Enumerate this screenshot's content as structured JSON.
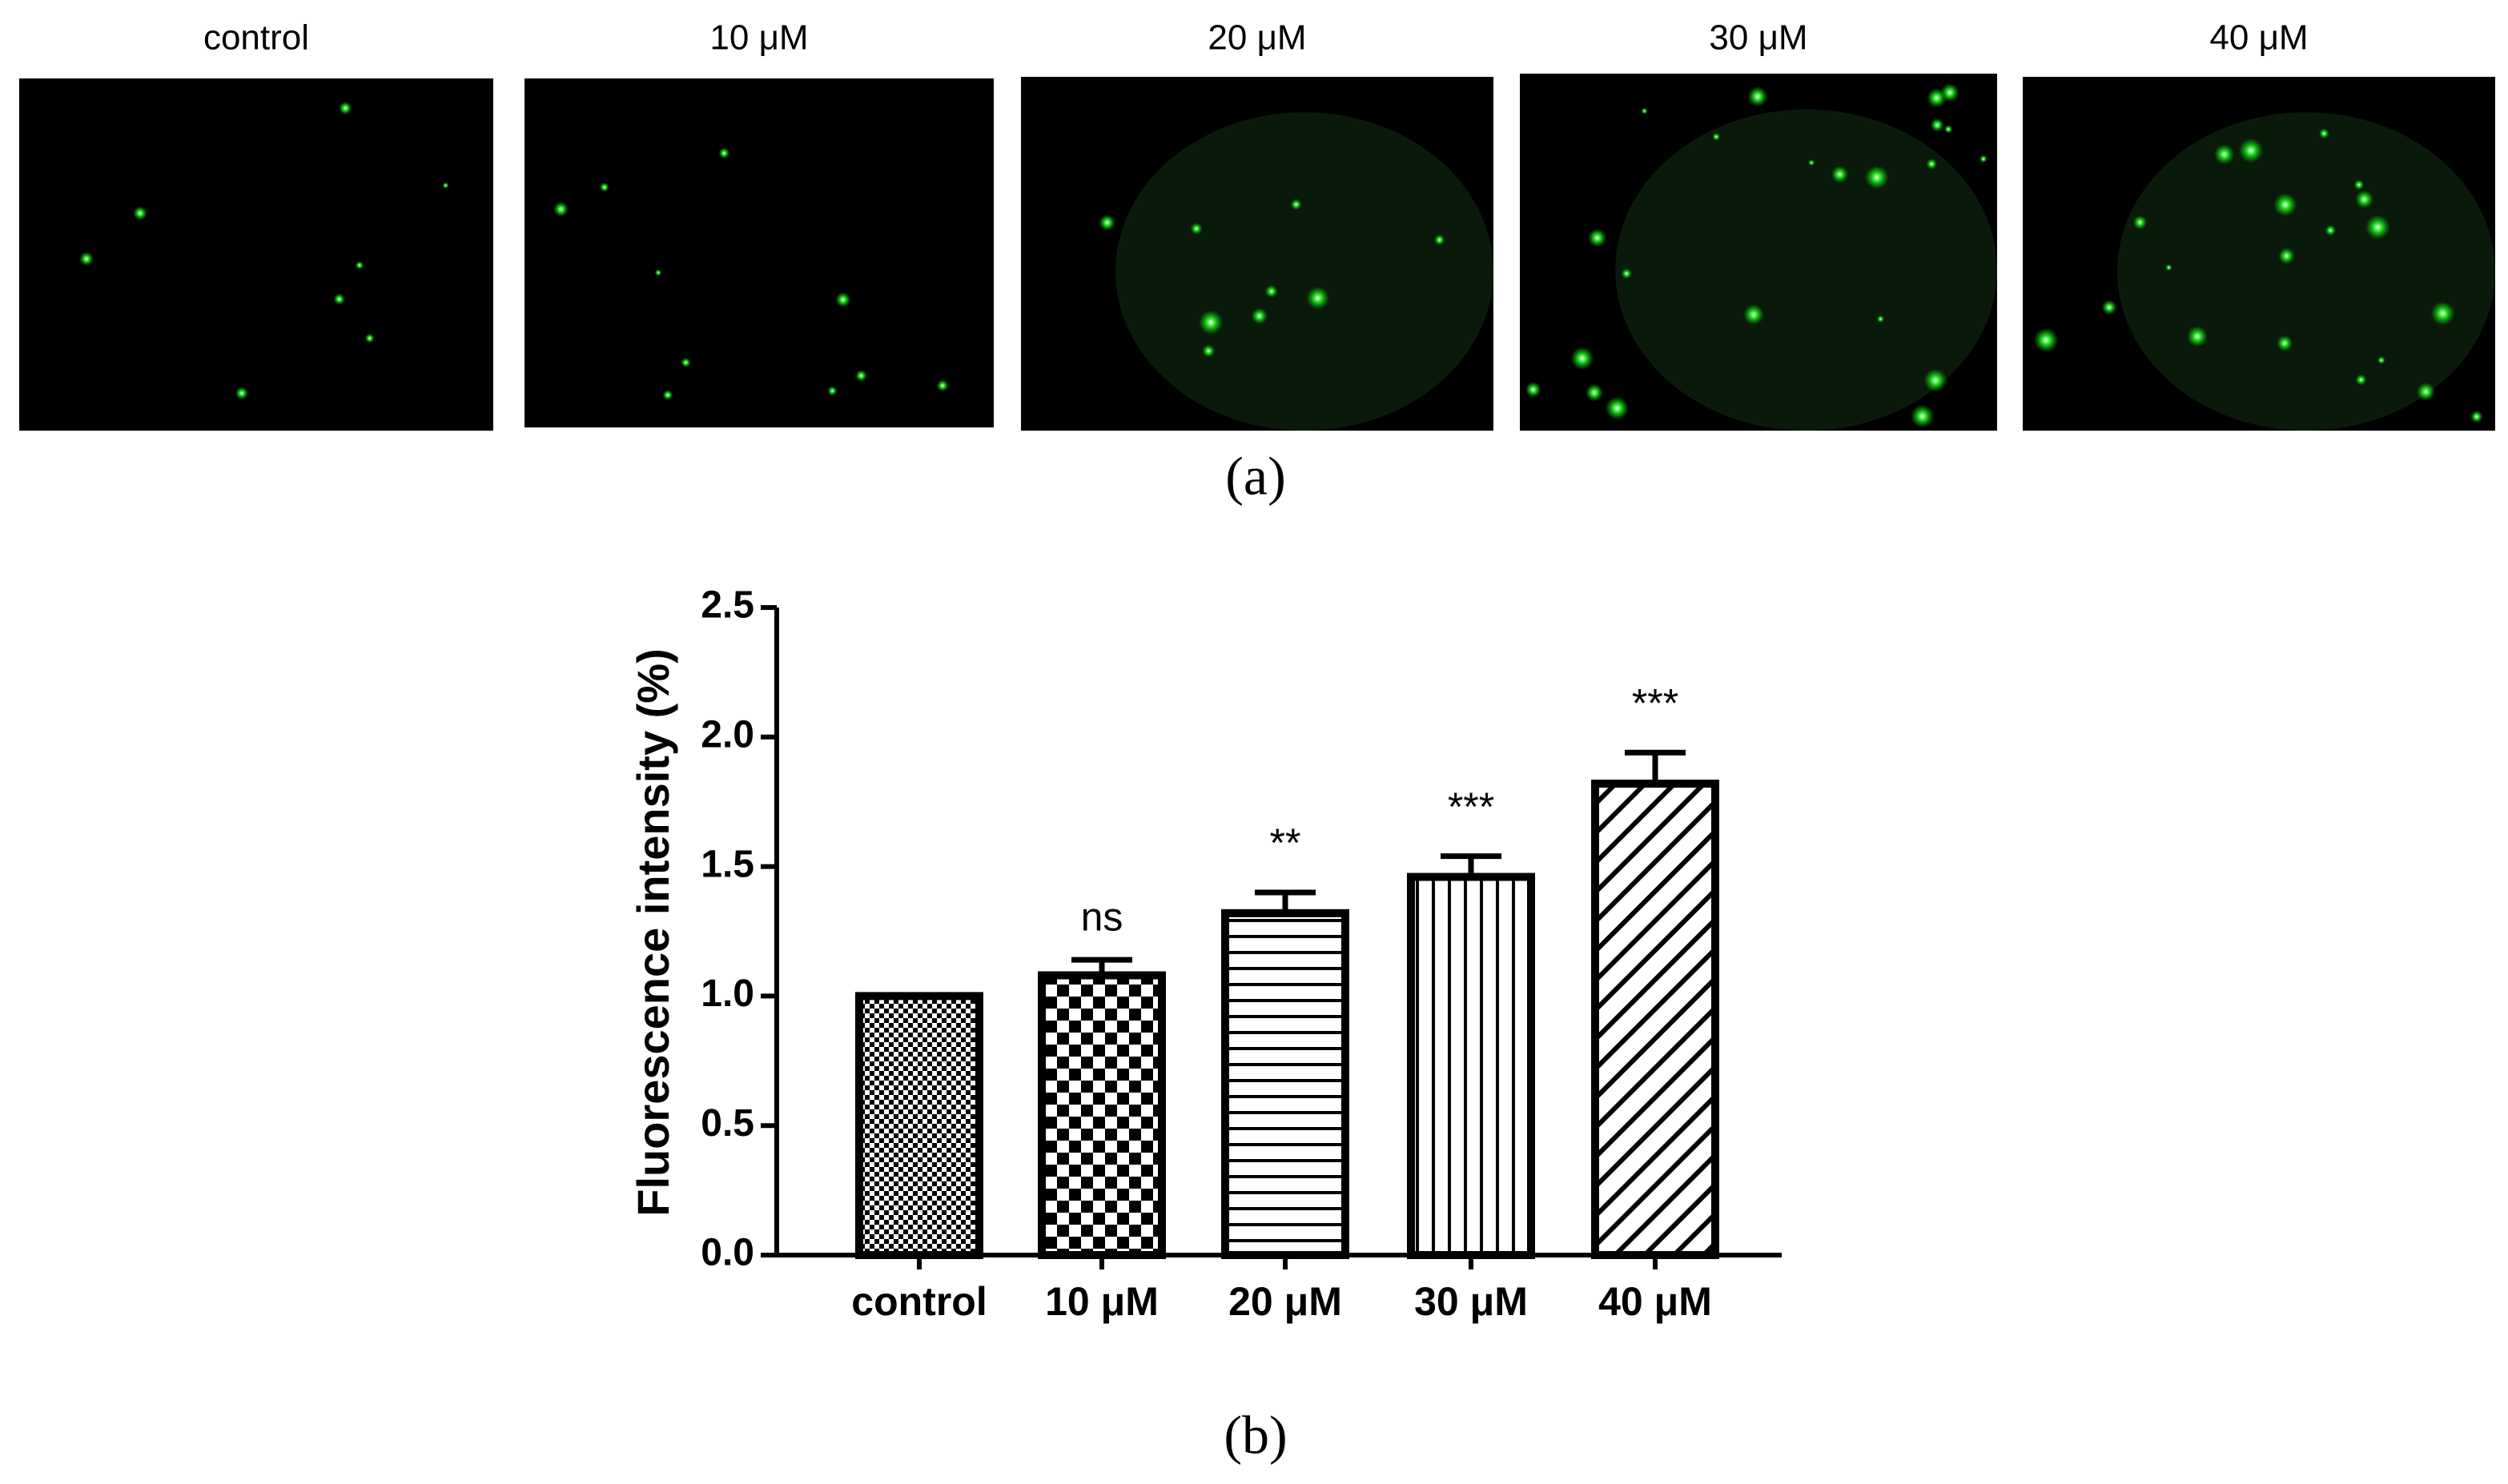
{
  "images": {
    "labels": [
      "control",
      "10 μM",
      "20 μM",
      "30 μM",
      "40 μM"
    ]
  },
  "panel_labels": [
    "(a)",
    "(b)"
  ],
  "chart_data": {
    "type": "bar",
    "y_label": "Fluorescence intensity (%)",
    "categories": [
      "control",
      "10 μM",
      "20 μM",
      "30 μM",
      "40 μM"
    ],
    "values": [
      1.0,
      1.08,
      1.32,
      1.46,
      1.82
    ],
    "errors": [
      0,
      0.06,
      0.08,
      0.08,
      0.12
    ],
    "annotations": [
      null,
      "ns",
      "**",
      "***",
      "***"
    ],
    "patterns": [
      "fine-check",
      "check",
      "horizontal",
      "vertical",
      "diagonal"
    ],
    "color": "#000000",
    "ylim": [
      0,
      2.5
    ],
    "yticks": [
      {
        "value": 0,
        "label": "0.0"
      },
      0.5,
      {
        "value": 1,
        "label": "1.0"
      },
      1.5,
      {
        "value": 2,
        "label": "2.0"
      },
      2.5
    ]
  }
}
